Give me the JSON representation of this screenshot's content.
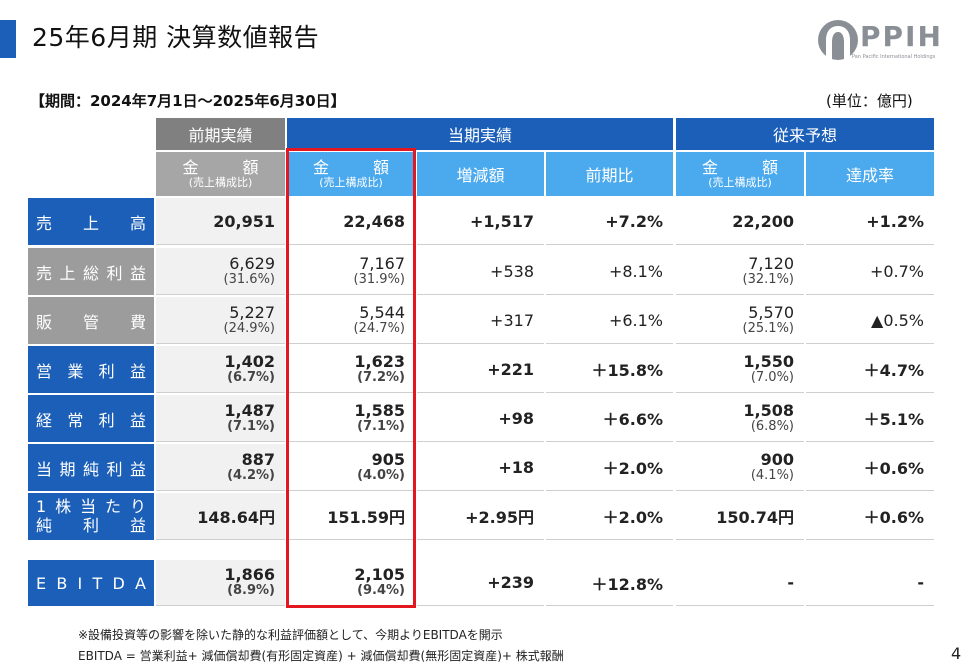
{
  "header": {
    "title": "25年6月期 決算数値報告"
  },
  "logo": {
    "text": "PPIH",
    "sub": "Pan Pacific International Holdings"
  },
  "period": "【期間：2024年7月1日～2025年6月30日】",
  "unit": "(単位：億円)",
  "table": {
    "group_headers": [
      "前期実績",
      "当期実績",
      "従来予想"
    ],
    "amount_label": "金　額",
    "amount_sub": "(売上構成比)",
    "col_change": "増減額",
    "col_yoy": "前期比",
    "col_achieve": "達成率",
    "rows": [
      {
        "label": "売上高",
        "prev": "20,951",
        "prev_ratio": "",
        "cur": "22,468",
        "cur_ratio": "",
        "diff": "+1,517",
        "yoy": "+7.2%",
        "fc": "22,200",
        "fc_ratio": "",
        "ach": "+1.2%"
      },
      {
        "label": "売上総利益",
        "prev": "6,629",
        "prev_ratio": "(31.6%)",
        "cur": "7,167",
        "cur_ratio": "(31.9%)",
        "diff": "+538",
        "yoy": "+8.1%",
        "fc": "7,120",
        "fc_ratio": "(32.1%)",
        "ach": "+0.7%"
      },
      {
        "label": "販管費",
        "prev": "5,227",
        "prev_ratio": "(24.9%)",
        "cur": "5,544",
        "cur_ratio": "(24.7%)",
        "diff": "+317",
        "yoy": "+6.1%",
        "fc": "5,570",
        "fc_ratio": "(25.1%)",
        "ach": "▲0.5%"
      },
      {
        "label": "営業利益",
        "prev": "1,402",
        "prev_ratio": "(6.7%)",
        "cur": "1,623",
        "cur_ratio": "(7.2%)",
        "diff": "+221",
        "yoy": "＋15.8%",
        "fc": "1,550",
        "fc_ratio": "(7.0%)",
        "ach": "＋4.7%"
      },
      {
        "label": "経常利益",
        "prev": "1,487",
        "prev_ratio": "(7.1%)",
        "cur": "1,585",
        "cur_ratio": "(7.1%)",
        "diff": "+98",
        "yoy": "＋6.6%",
        "fc": "1,508",
        "fc_ratio": "(6.8%)",
        "ach": "＋5.1%"
      },
      {
        "label": "当期純利益",
        "prev": "887",
        "prev_ratio": "(4.2%)",
        "cur": "905",
        "cur_ratio": "(4.0%)",
        "diff": "+18",
        "yoy": "＋2.0%",
        "fc": "900",
        "fc_ratio": "(4.1%)",
        "ach": "＋0.6%"
      },
      {
        "label_line1": "1株当たり",
        "label_line2": "純利益",
        "prev": "148.64円",
        "cur": "151.59円",
        "diff": "+2.95円",
        "yoy": "＋2.0%",
        "fc": "150.74円",
        "ach": "＋0.6%"
      },
      {
        "label": "EBITDA",
        "prev": "1,866",
        "prev_ratio": "(8.9%)",
        "cur": "2,105",
        "cur_ratio": "(9.4%)",
        "diff": "+239",
        "yoy": "＋12.8%",
        "fc": "-",
        "ach": "-"
      }
    ]
  },
  "notes": [
    "※設備投資等の影響を除いた静的な利益評価額として、今期よりEBITDAを開示",
    "EBITDA = 営業利益+ 減価償却費(有形固定資産) + 減価償却費(無形固定資産)+ 株式報酬"
  ],
  "page_number": "4"
}
